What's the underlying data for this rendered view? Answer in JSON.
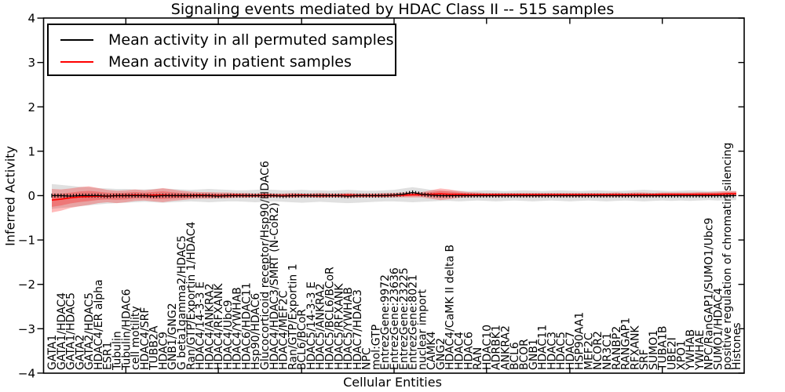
{
  "chart_data": {
    "type": "line",
    "title": "Signaling events mediated by HDAC Class II -- 515 samples",
    "xlabel": "Cellular Entities",
    "ylabel": "Inferred Activity",
    "ylim": [
      -4,
      4
    ],
    "yticks": [
      -4,
      -3,
      -2,
      -1,
      0,
      1,
      2,
      3,
      4
    ],
    "xtick_indices": [
      8,
      18,
      27,
      37,
      47,
      56,
      66
    ],
    "grid": false,
    "legend_position": "upper left",
    "categories": [
      "GATA1",
      "GATA1/HDAC4",
      "GATA1/HDAC5",
      "GATA2",
      "GATA2/HDAC5",
      "HDAC4/ER alpha",
      "ESR1",
      "Tubulin",
      "Tubulin/HDAC6",
      "cell motility",
      "HDAC4/SRF",
      "TUBB2A",
      "HDAC9",
      "GNB1/GNG2",
      "G beta1gamma2/HDAC5",
      "Ran/GTP/Exportin 1/HDAC4",
      "HDAC4/14-3-3 E",
      "HDAC4/ANKRA2",
      "HDAC4/RFXANK",
      "HDAC4/Ubc9",
      "HDAC4/YWHAB",
      "HDAC6/HDAC11",
      "Hsp90/HDAC6",
      "Glucocorticoid receptor/Hsp90/HDAC6",
      "HDAC4/HDAC3/SMRT (N-CoR2)",
      "HDAC4/MEF2C",
      "Ran/GTP/Exportin 1",
      "BCL6/BCoR",
      "HDAC5/14-3-3 E",
      "HDAC5/ANKRA2",
      "HDAC5/BCL6/BCoR",
      "HDAC5/RFXANK",
      "HDAC5/YWHAB",
      "HDAC7/HDAC3",
      "NPC",
      "mol:GTP",
      "EntrezGene:9972",
      "EntrezGene:23636",
      "EntrezGene:23225",
      "EntrezGene:8021",
      "nuclear import",
      "CAMK4",
      "GNG2",
      "HDAC4/CaMK II delta B",
      "HDAC4",
      "HDAC6",
      "RAN",
      "HDAC10",
      "ADRBK1",
      "ANKRA2",
      "BCL6",
      "BCOR",
      "GNB1",
      "HDAC11",
      "HDAC3",
      "HDAC5",
      "HDAC7",
      "HSP90AA1",
      "MEF2C",
      "NCOR2",
      "NR3C1",
      "RANBP2",
      "RANGAP1",
      "RFXANK",
      "SRF",
      "SUMO1",
      "TUBA1B",
      "UBE2I",
      "XPO1",
      "YWHAB",
      "YWHAE",
      "NPC/RanGAP1/SUMO1/Ubc9",
      "SUMO1/HDAC4",
      "positive regulation of chromatin silencing",
      "Histones"
    ],
    "series": [
      {
        "name": "Mean activity in all permuted samples",
        "color": "#000000",
        "style": "solid-with-tick-markers",
        "values": [
          0,
          0,
          -0.01,
          0,
          0,
          0,
          -0.01,
          0,
          0,
          0,
          0,
          -0.01,
          0,
          0,
          0,
          0,
          0,
          0,
          -0.01,
          0,
          0,
          0,
          0,
          0,
          0,
          -0.01,
          0,
          0,
          0,
          0,
          0,
          0,
          -0.01,
          0,
          0,
          0,
          0,
          0.01,
          0.03,
          0.07,
          0.03,
          0.01,
          0,
          0,
          0,
          0,
          0,
          0,
          0,
          0,
          0,
          0,
          0,
          0,
          0,
          0,
          0,
          0,
          0,
          0,
          0,
          0,
          0,
          0,
          0,
          0,
          0,
          0,
          0,
          0,
          0,
          0,
          0,
          0,
          0
        ],
        "band": {
          "name": "permuted-range",
          "color": "#a0a0a0",
          "opacity": 0.32,
          "upper": [
            0.26,
            0.24,
            0.22,
            0.2,
            0.19,
            0.17,
            0.16,
            0.15,
            0.15,
            0.14,
            0.14,
            0.15,
            0.16,
            0.15,
            0.14,
            0.13,
            0.14,
            0.15,
            0.14,
            0.13,
            0.12,
            0.12,
            0.13,
            0.14,
            0.13,
            0.12,
            0.12,
            0.13,
            0.12,
            0.12,
            0.11,
            0.12,
            0.13,
            0.12,
            0.11,
            0.11,
            0.12,
            0.13,
            0.16,
            0.19,
            0.16,
            0.13,
            0.12,
            0.11,
            0.11,
            0.1,
            0.11,
            0.12,
            0.11,
            0.1,
            0.11,
            0.12,
            0.11,
            0.1,
            0.11,
            0.12,
            0.11,
            0.1,
            0.11,
            0.12,
            0.11,
            0.1,
            0.11,
            0.12,
            0.13,
            0.12,
            0.11,
            0.1,
            0.11,
            0.12,
            0.11,
            0.1,
            0.1,
            0.11,
            0.1
          ],
          "lower": [
            -0.3,
            -0.28,
            -0.26,
            -0.24,
            -0.22,
            -0.2,
            -0.18,
            -0.17,
            -0.16,
            -0.15,
            -0.14,
            -0.15,
            -0.16,
            -0.15,
            -0.14,
            -0.13,
            -0.14,
            -0.15,
            -0.14,
            -0.13,
            -0.13,
            -0.14,
            -0.15,
            -0.14,
            -0.13,
            -0.14,
            -0.15,
            -0.16,
            -0.15,
            -0.14,
            -0.15,
            -0.16,
            -0.17,
            -0.16,
            -0.15,
            -0.14,
            -0.13,
            -0.13,
            -0.14,
            -0.15,
            -0.14,
            -0.13,
            -0.12,
            -0.12,
            -0.13,
            -0.12,
            -0.11,
            -0.12,
            -0.13,
            -0.12,
            -0.11,
            -0.12,
            -0.13,
            -0.12,
            -0.11,
            -0.12,
            -0.13,
            -0.12,
            -0.11,
            -0.12,
            -0.13,
            -0.12,
            -0.11,
            -0.12,
            -0.13,
            -0.12,
            -0.11,
            -0.12,
            -0.11,
            -0.12,
            -0.11,
            -0.1,
            -0.11,
            -0.1,
            -0.1
          ]
        }
      },
      {
        "name": "Mean activity in patient samples",
        "color": "#ff0000",
        "style": "solid",
        "values": [
          -0.1,
          -0.08,
          -0.05,
          -0.03,
          -0.02,
          -0.01,
          -0.01,
          0,
          0,
          0.01,
          0,
          0.01,
          0.01,
          0,
          0,
          0,
          0.01,
          0,
          0,
          0,
          0.01,
          0,
          0,
          0.01,
          0,
          0,
          0,
          0.01,
          0,
          0,
          0,
          0,
          0.01,
          0,
          0,
          0,
          0,
          0.01,
          0.01,
          0.02,
          0.02,
          0.03,
          0.04,
          0.03,
          0.03,
          0.02,
          0.02,
          0.02,
          0.02,
          0.02,
          0.02,
          0.02,
          0.02,
          0.02,
          0.02,
          0.02,
          0.02,
          0.02,
          0.02,
          0.02,
          0.02,
          0.02,
          0.02,
          0.02,
          0.02,
          0.02,
          0.03,
          0.03,
          0.03,
          0.03,
          0.03,
          0.03,
          0.03,
          0.04,
          0.04
        ],
        "band": {
          "name": "patient-range",
          "color": "#ff0000",
          "opacity": 0.27,
          "upper": [
            0.15,
            0.14,
            0.16,
            0.19,
            0.21,
            0.17,
            0.13,
            0.11,
            0.12,
            0.14,
            0.12,
            0.14,
            0.17,
            0.14,
            0.11,
            0.09,
            0.08,
            0.08,
            0.07,
            0.07,
            0.06,
            0.06,
            0.05,
            0.06,
            0.05,
            0.05,
            0.06,
            0.05,
            0.05,
            0.06,
            0.05,
            0.05,
            0.06,
            0.05,
            0.05,
            0.05,
            0.06,
            0.06,
            0.07,
            0.07,
            0.08,
            0.12,
            0.16,
            0.14,
            0.1,
            0.08,
            0.07,
            0.06,
            0.06,
            0.06,
            0.06,
            0.06,
            0.06,
            0.06,
            0.06,
            0.06,
            0.06,
            0.06,
            0.06,
            0.06,
            0.06,
            0.07,
            0.06,
            0.07,
            0.07,
            0.06,
            0.07,
            0.07,
            0.07,
            0.07,
            0.08,
            0.08,
            0.09,
            0.1,
            0.1
          ],
          "lower": [
            -0.38,
            -0.34,
            -0.28,
            -0.24,
            -0.21,
            -0.17,
            -0.15,
            -0.17,
            -0.15,
            -0.12,
            -0.11,
            -0.13,
            -0.15,
            -0.12,
            -0.1,
            -0.08,
            -0.07,
            -0.07,
            -0.06,
            -0.06,
            -0.05,
            -0.05,
            -0.04,
            -0.05,
            -0.04,
            -0.04,
            -0.05,
            -0.04,
            -0.04,
            -0.05,
            -0.04,
            -0.04,
            -0.05,
            -0.04,
            -0.04,
            -0.04,
            -0.04,
            -0.04,
            -0.04,
            -0.04,
            -0.04,
            -0.07,
            -0.1,
            -0.08,
            -0.05,
            -0.04,
            -0.03,
            -0.03,
            -0.03,
            -0.03,
            -0.03,
            -0.03,
            -0.03,
            -0.03,
            -0.03,
            -0.03,
            -0.03,
            -0.03,
            -0.03,
            -0.03,
            -0.03,
            -0.03,
            -0.03,
            -0.03,
            -0.03,
            -0.03,
            -0.02,
            -0.02,
            -0.02,
            -0.02,
            -0.02,
            -0.02,
            -0.01,
            -0.01,
            -0.01
          ]
        }
      }
    ]
  }
}
